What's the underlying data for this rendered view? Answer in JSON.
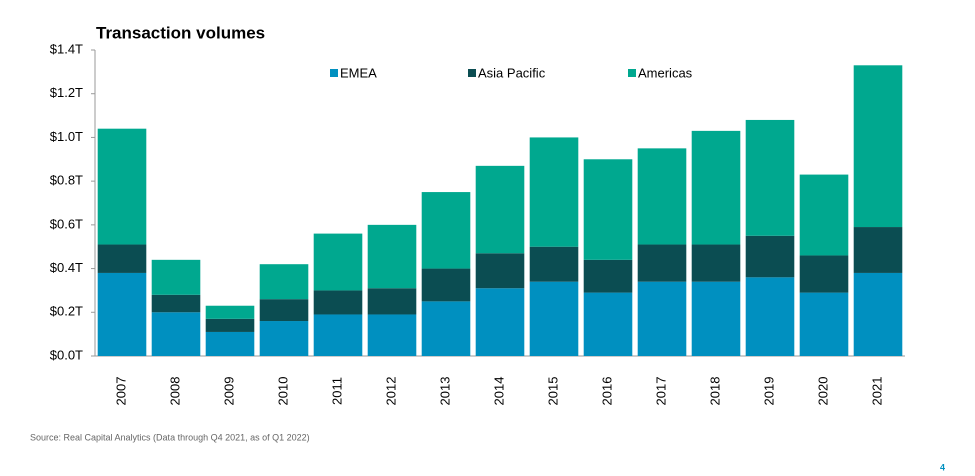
{
  "chart_data": {
    "type": "stacked_bar",
    "title": "Transaction volumes",
    "categories": [
      "2007",
      "2008",
      "2009",
      "2010",
      "2011",
      "2012",
      "2013",
      "2014",
      "2015",
      "2016",
      "2017",
      "2018",
      "2019",
      "2020",
      "2021"
    ],
    "series": [
      {
        "name": "EMEA",
        "color": "#0090c0",
        "values": [
          0.38,
          0.2,
          0.11,
          0.16,
          0.19,
          0.19,
          0.25,
          0.31,
          0.34,
          0.29,
          0.34,
          0.34,
          0.36,
          0.29,
          0.38
        ]
      },
      {
        "name": "Asia Pacific",
        "color": "#0b4d52",
        "values": [
          0.13,
          0.08,
          0.06,
          0.1,
          0.11,
          0.12,
          0.15,
          0.16,
          0.16,
          0.15,
          0.17,
          0.17,
          0.19,
          0.17,
          0.21
        ]
      },
      {
        "name": "Americas",
        "color": "#00a88f",
        "values": [
          0.53,
          0.16,
          0.06,
          0.16,
          0.26,
          0.29,
          0.35,
          0.4,
          0.5,
          0.46,
          0.44,
          0.52,
          0.53,
          0.37,
          0.74
        ]
      }
    ],
    "ylim": [
      0,
      1.4
    ],
    "yticks": [
      {
        "value": 0,
        "label": "$0.0T"
      },
      {
        "value": 0.2,
        "label": "$0.2T"
      },
      {
        "value": 0.4,
        "label": "$0.4T"
      },
      {
        "value": 0.6,
        "label": "$0.6T"
      },
      {
        "value": 0.8,
        "label": "$0.8T"
      },
      {
        "value": 1.0,
        "label": "$1.0T"
      },
      {
        "value": 1.2,
        "label": "$1.2T"
      },
      {
        "value": 1.4,
        "label": "$1.4T"
      }
    ],
    "source": "Source: Real Capital Analytics (Data through Q4 2021, as of Q1 2022)",
    "page_number": "4"
  }
}
